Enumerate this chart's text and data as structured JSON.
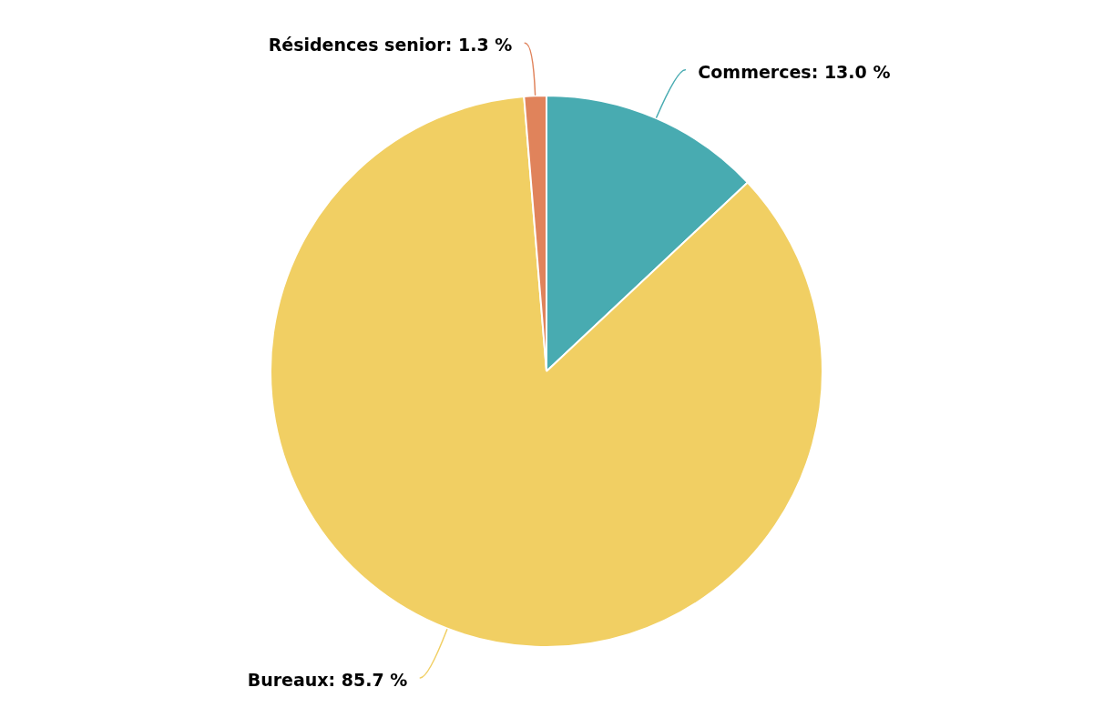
{
  "chart_data": {
    "type": "pie",
    "categories": [
      "Commerces",
      "Bureaux",
      "Résidences senior"
    ],
    "values": [
      13.0,
      85.7,
      1.3
    ],
    "value_labels": [
      "13.0 %",
      "85.7 %",
      "1.3 %"
    ],
    "colors": [
      "#48abb1",
      "#f1cf63",
      "#e0835b"
    ],
    "legend": false
  }
}
